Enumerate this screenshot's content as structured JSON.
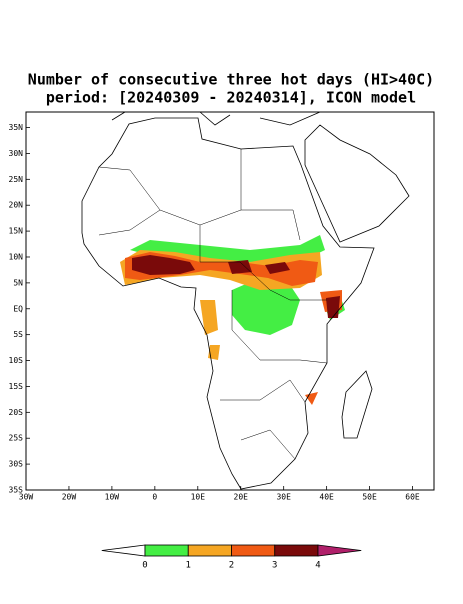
{
  "map": {
    "title": "Number of consecutive three hot days (HI>40C)",
    "subtitle": "period: [20240309 - 20240314], ICON model",
    "lonlim": [
      -30,
      65
    ],
    "latlim": [
      -35,
      38
    ],
    "lonticks": [
      {
        "value": -30,
        "label": "30W"
      },
      {
        "value": -20,
        "label": "20W"
      },
      {
        "value": -10,
        "label": "10W"
      },
      0,
      {
        "value": 10,
        "label": "10E"
      },
      {
        "value": 20,
        "label": "20E"
      },
      {
        "value": 30,
        "label": "30E"
      },
      {
        "value": 40,
        "label": "40E"
      },
      {
        "value": 50,
        "label": "50E"
      },
      {
        "value": 60,
        "label": "60E"
      }
    ],
    "latticks": [
      {
        "value": 35,
        "label": "35N"
      },
      {
        "value": 30,
        "label": "30N"
      },
      {
        "value": 25,
        "label": "25N"
      },
      {
        "value": 20,
        "label": "20N"
      },
      {
        "value": 15,
        "label": "15N"
      },
      {
        "value": 10,
        "label": "10N"
      },
      {
        "value": 5,
        "label": "5N"
      },
      {
        "value": 0,
        "label": "EQ"
      },
      {
        "value": -5,
        "label": "5S"
      },
      {
        "value": -10,
        "label": "10S"
      },
      {
        "value": -15,
        "label": "15S"
      },
      {
        "value": -20,
        "label": "20S"
      },
      {
        "value": -25,
        "label": "25S"
      },
      {
        "value": -30,
        "label": "30S"
      },
      {
        "value": -35,
        "label": "35S"
      }
    ],
    "colorbar": {
      "levels": [
        0,
        1,
        2,
        3,
        4
      ],
      "colors": [
        "#ffffff",
        "#44ee44",
        "#f5a623",
        "#f05a14",
        "#7a0a0a",
        "#b0206a"
      ]
    }
  }
}
